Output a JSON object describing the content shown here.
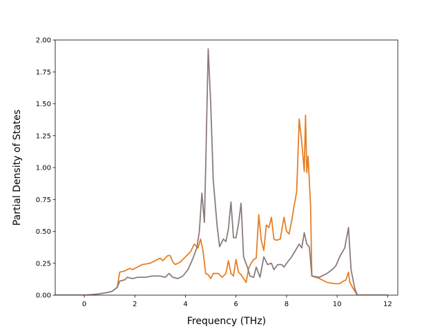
{
  "chart_data": {
    "type": "line",
    "xlabel": "Frequency (THz)",
    "ylabel": "Partial Density of States",
    "xlim": [
      -1.15,
      12.4
    ],
    "ylim": [
      0,
      2.0
    ],
    "xticks": [
      0,
      2,
      4,
      6,
      8,
      10,
      12
    ],
    "yticks": [
      0.0,
      0.25,
      0.5,
      0.75,
      1.0,
      1.25,
      1.5,
      1.75,
      2.0
    ],
    "xtick_labels": [
      "0",
      "2",
      "4",
      "6",
      "8",
      "10",
      "12"
    ],
    "ytick_labels": [
      "0.00",
      "0.25",
      "0.50",
      "0.75",
      "1.00",
      "1.25",
      "1.50",
      "1.75",
      "2.00"
    ],
    "grid": false,
    "series": [
      {
        "color": "#e67e22",
        "points": [
          [
            -1.15,
            0
          ],
          [
            0,
            0
          ],
          [
            0.3,
            0.004
          ],
          [
            0.6,
            0.01
          ],
          [
            0.9,
            0.02
          ],
          [
            1.1,
            0.03
          ],
          [
            1.3,
            0.06
          ],
          [
            1.4,
            0.18
          ],
          [
            1.6,
            0.19
          ],
          [
            1.8,
            0.21
          ],
          [
            1.9,
            0.2
          ],
          [
            2.1,
            0.22
          ],
          [
            2.3,
            0.24
          ],
          [
            2.6,
            0.25
          ],
          [
            2.8,
            0.27
          ],
          [
            3.0,
            0.29
          ],
          [
            3.1,
            0.27
          ],
          [
            3.2,
            0.29
          ],
          [
            3.3,
            0.31
          ],
          [
            3.4,
            0.31
          ],
          [
            3.5,
            0.26
          ],
          [
            3.6,
            0.24
          ],
          [
            3.8,
            0.26
          ],
          [
            4.0,
            0.3
          ],
          [
            4.2,
            0.34
          ],
          [
            4.35,
            0.4
          ],
          [
            4.5,
            0.37
          ],
          [
            4.6,
            0.44
          ],
          [
            4.7,
            0.34
          ],
          [
            4.8,
            0.17
          ],
          [
            4.9,
            0.16
          ],
          [
            5.0,
            0.13
          ],
          [
            5.1,
            0.17
          ],
          [
            5.3,
            0.17
          ],
          [
            5.45,
            0.14
          ],
          [
            5.6,
            0.17
          ],
          [
            5.7,
            0.27
          ],
          [
            5.8,
            0.17
          ],
          [
            5.9,
            0.15
          ],
          [
            6.0,
            0.28
          ],
          [
            6.1,
            0.18
          ],
          [
            6.2,
            0.16
          ],
          [
            6.3,
            0.13
          ],
          [
            6.4,
            0.1
          ],
          [
            6.5,
            0.21
          ],
          [
            6.6,
            0.25
          ],
          [
            6.7,
            0.28
          ],
          [
            6.8,
            0.29
          ],
          [
            6.9,
            0.63
          ],
          [
            7.0,
            0.43
          ],
          [
            7.1,
            0.35
          ],
          [
            7.2,
            0.55
          ],
          [
            7.3,
            0.53
          ],
          [
            7.4,
            0.61
          ],
          [
            7.5,
            0.44
          ],
          [
            7.6,
            0.43
          ],
          [
            7.75,
            0.44
          ],
          [
            7.9,
            0.61
          ],
          [
            8.0,
            0.5
          ],
          [
            8.1,
            0.48
          ],
          [
            8.2,
            0.58
          ],
          [
            8.3,
            0.7
          ],
          [
            8.4,
            0.81
          ],
          [
            8.5,
            1.38
          ],
          [
            8.6,
            1.2
          ],
          [
            8.7,
            0.97
          ],
          [
            8.75,
            1.41
          ],
          [
            8.8,
            0.96
          ],
          [
            8.85,
            1.09
          ],
          [
            8.95,
            0.7
          ],
          [
            9.0,
            0.15
          ],
          [
            9.3,
            0.13
          ],
          [
            9.6,
            0.1
          ],
          [
            9.9,
            0.09
          ],
          [
            10.1,
            0.09
          ],
          [
            10.25,
            0.11
          ],
          [
            10.35,
            0.12
          ],
          [
            10.45,
            0.18
          ],
          [
            10.5,
            0.1
          ],
          [
            10.7,
            0.03
          ],
          [
            10.8,
            0
          ],
          [
            12.0,
            0
          ]
        ]
      },
      {
        "color": "#8c7b7b",
        "points": [
          [
            -1.15,
            0
          ],
          [
            0,
            0
          ],
          [
            0.3,
            0.004
          ],
          [
            0.6,
            0.01
          ],
          [
            0.9,
            0.02
          ],
          [
            1.1,
            0.03
          ],
          [
            1.3,
            0.06
          ],
          [
            1.4,
            0.11
          ],
          [
            1.6,
            0.12
          ],
          [
            1.7,
            0.14
          ],
          [
            1.9,
            0.13
          ],
          [
            2.1,
            0.14
          ],
          [
            2.4,
            0.14
          ],
          [
            2.7,
            0.15
          ],
          [
            3.0,
            0.15
          ],
          [
            3.2,
            0.14
          ],
          [
            3.35,
            0.17
          ],
          [
            3.5,
            0.14
          ],
          [
            3.7,
            0.13
          ],
          [
            3.9,
            0.15
          ],
          [
            4.1,
            0.2
          ],
          [
            4.3,
            0.29
          ],
          [
            4.45,
            0.37
          ],
          [
            4.55,
            0.5
          ],
          [
            4.65,
            0.8
          ],
          [
            4.75,
            0.57
          ],
          [
            4.8,
            1.0
          ],
          [
            4.9,
            1.93
          ],
          [
            5.0,
            1.5
          ],
          [
            5.1,
            0.9
          ],
          [
            5.25,
            0.55
          ],
          [
            5.35,
            0.38
          ],
          [
            5.5,
            0.44
          ],
          [
            5.6,
            0.42
          ],
          [
            5.7,
            0.52
          ],
          [
            5.8,
            0.73
          ],
          [
            5.9,
            0.45
          ],
          [
            6.0,
            0.45
          ],
          [
            6.1,
            0.56
          ],
          [
            6.2,
            0.72
          ],
          [
            6.3,
            0.3
          ],
          [
            6.45,
            0.22
          ],
          [
            6.55,
            0.15
          ],
          [
            6.7,
            0.14
          ],
          [
            6.8,
            0.22
          ],
          [
            6.95,
            0.14
          ],
          [
            7.1,
            0.3
          ],
          [
            7.25,
            0.24
          ],
          [
            7.4,
            0.25
          ],
          [
            7.5,
            0.2
          ],
          [
            7.65,
            0.24
          ],
          [
            7.8,
            0.24
          ],
          [
            7.9,
            0.22
          ],
          [
            8.0,
            0.25
          ],
          [
            8.2,
            0.3
          ],
          [
            8.35,
            0.35
          ],
          [
            8.5,
            0.4
          ],
          [
            8.6,
            0.37
          ],
          [
            8.7,
            0.49
          ],
          [
            8.8,
            0.4
          ],
          [
            8.9,
            0.38
          ],
          [
            9.0,
            0.15
          ],
          [
            9.3,
            0.14
          ],
          [
            9.6,
            0.17
          ],
          [
            9.8,
            0.2
          ],
          [
            9.95,
            0.23
          ],
          [
            10.1,
            0.3
          ],
          [
            10.3,
            0.37
          ],
          [
            10.45,
            0.53
          ],
          [
            10.55,
            0.2
          ],
          [
            10.7,
            0.05
          ],
          [
            10.8,
            0
          ],
          [
            12.0,
            0
          ]
        ]
      }
    ]
  }
}
